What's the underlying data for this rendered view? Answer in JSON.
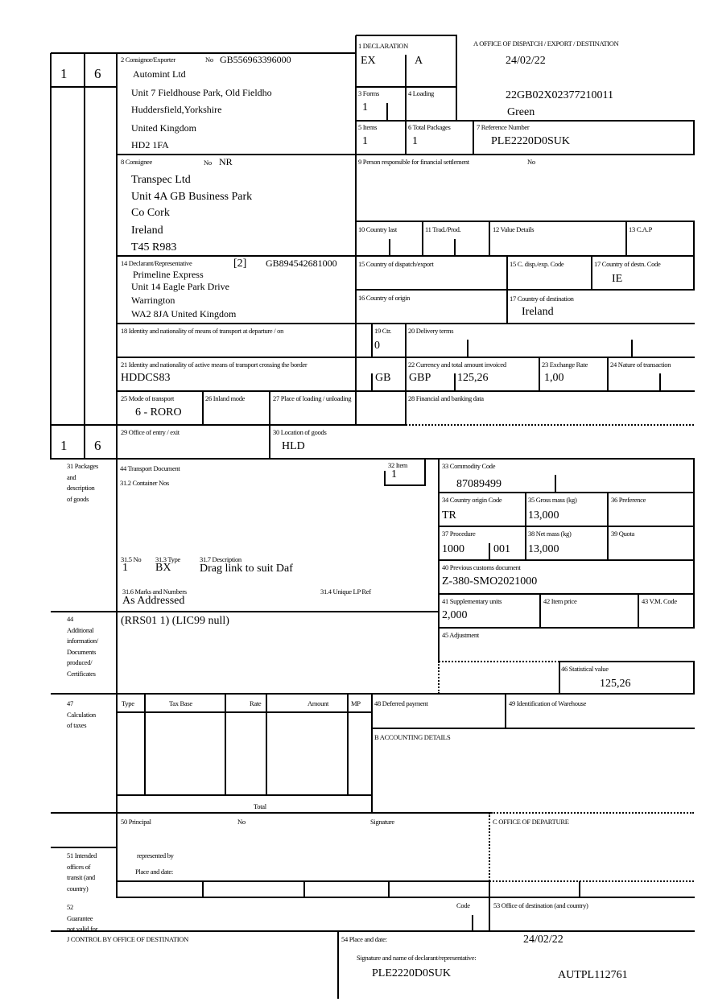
{
  "page_counter": {
    "top_forms": "1",
    "top_items": "6",
    "bottom_forms": "1",
    "bottom_items": "6"
  },
  "box1": {
    "label": "1 DECLARATION",
    "type": "EX",
    "subtype": "A"
  },
  "office": {
    "label": "A    OFFICE OF DISPATCH / EXPORT / DESTINATION",
    "date": "24/02/22",
    "mrn": "22GB02X02377210011",
    "route": "Green"
  },
  "box3": {
    "label": "3 Forms",
    "value": "1"
  },
  "box4": {
    "label": "4 Loading"
  },
  "box5": {
    "label": "5 Items",
    "value": "1"
  },
  "box6": {
    "label": "6 Total Packages",
    "value": "1"
  },
  "box7": {
    "label": "7 Reference Number",
    "value": "PLE2220D0SUK"
  },
  "consignor": {
    "label": "2 Consignor/Exporter",
    "no_label": "No",
    "eori": "GB556963396000",
    "name": "Automint Ltd",
    "line1": "Unit 7 Fieldhouse Park, Old Fieldho",
    "line2": "Huddersfield,Yorkshire",
    "country": "United Kingdom",
    "postcode": "HD2 1FA"
  },
  "consignee": {
    "label": "8 Consignee",
    "no_label": "No",
    "no": "NR",
    "name": "Transpec Ltd",
    "line1": "Unit 4A GB Business Park",
    "line2": "Co Cork",
    "country": "Ireland",
    "postcode": "T45 R983"
  },
  "box9": {
    "label": "9 Person responsible for financial settlement",
    "no_label": "No"
  },
  "box10": {
    "label": "10 Country last"
  },
  "box11": {
    "label": "11 Trad./Prod."
  },
  "box12": {
    "label": "12 Value Details"
  },
  "box13": {
    "label": "13 C.A.P"
  },
  "declarant": {
    "label": "14 Declarant/Representative",
    "type": "[2]",
    "eori": "GB894542681000",
    "name": "Primeline Express",
    "line1": "Unit 14 Eagle Park Drive",
    "line2": "Warrington",
    "line3": "WA2 8JA United Kingdom"
  },
  "box15": {
    "label": "15 Country of dispatch/export"
  },
  "box15a": {
    "label": "15 C. disp./exp. Code"
  },
  "box17a": {
    "label": "17 Country of destn. Code",
    "value": "IE"
  },
  "box16": {
    "label": "16 Country of origin"
  },
  "box17": {
    "label": "17 Country of destination",
    "value": "Ireland"
  },
  "box18": {
    "label": "18 Identity and nationality of means of transport at departure / on"
  },
  "box19": {
    "label": "19 Ctr.",
    "value": "0"
  },
  "box20": {
    "label": "20 Delivery terms"
  },
  "box21": {
    "label": "21 Identity and nationality of active means of transport crossing the border",
    "value": "HDDCS83",
    "nationality": "GB"
  },
  "box22": {
    "label": "22 Currency and total amount invoiced",
    "currency": "GBP",
    "amount": "125,26"
  },
  "box23": {
    "label": "23 Exchange Rate",
    "value": "1,00"
  },
  "box24": {
    "label": "24 Nature of transaction"
  },
  "box25": {
    "label": "25 Mode of transport",
    "value": "6 - RORO"
  },
  "box26": {
    "label": "26 Inland mode"
  },
  "box27": {
    "label": "27 Place of loading / unloading"
  },
  "box28": {
    "label": "28 Financial and banking data"
  },
  "box29": {
    "label": "29 Office of entry / exit"
  },
  "box30": {
    "label": "30 Location of goods",
    "value": "HLD"
  },
  "box31": {
    "label": "31 Packages\nand\ndescription\nof goods",
    "transport_doc_label": "44 Transport Document",
    "container_label": "31.2 Container Nos",
    "no_label": "31.5 No",
    "no": "1",
    "type_label": "31.3 Type",
    "type": "BX",
    "desc_label": "31.7 Description",
    "desc": "Drag link to suit Daf",
    "marks_label": "31.6 Marks and Numbers",
    "marks": "As Addressed",
    "lp_label": "31.4 Unique LP Ref"
  },
  "box32": {
    "label": "32 Item",
    "value": "1"
  },
  "box33": {
    "label": "33 Commodity Code",
    "value": "87089499"
  },
  "box34": {
    "label": "34 Country origin Code",
    "value": "TR"
  },
  "box35": {
    "label": "35 Gross mass (kg)",
    "value": "13,000"
  },
  "box36": {
    "label": "36 Preference"
  },
  "box37": {
    "label": "37 Procedure",
    "value": "1000",
    "additional": "001"
  },
  "box38": {
    "label": "38 Net mass (kg)",
    "value": "13,000"
  },
  "box39": {
    "label": "39 Quota"
  },
  "box40": {
    "label": "40 Previous customs document",
    "value": "Z-380-SMO2021000"
  },
  "box41": {
    "label": "41 Supplementary units",
    "value": "2,000"
  },
  "box42": {
    "label": "42 Item price"
  },
  "box43": {
    "label": "43 V.M. Code"
  },
  "box44": {
    "label": "44\nAdditional\ninformation/\nDocuments\nproduced/\nCertificates",
    "value": "(RRS01 1) (LIC99 null)"
  },
  "box45": {
    "label": "45 Adjustment"
  },
  "box46": {
    "label": "46 Statistical value",
    "value": "125,26"
  },
  "box47": {
    "label": "47\nCalculation\n    of taxes",
    "columns": [
      "Type",
      "Tax Base",
      "Rate",
      "Amount",
      "MP"
    ],
    "total_label": "Total"
  },
  "box48": {
    "label": "48 Deferred payment"
  },
  "box49": {
    "label": "49 Identification of Warehouse"
  },
  "boxB": {
    "label": "B ACCOUNTING DETAILS"
  },
  "box50": {
    "label": "50 Principal",
    "no_label": "No",
    "signature_label": "Signature",
    "represented_label": "represented by",
    "place_label": "Place and date:"
  },
  "boxC": {
    "label": "C OFFICE OF DEPARTURE"
  },
  "box51": {
    "label": "51 Intended\noffices of\ntransit (and\ncountry)"
  },
  "box52": {
    "label": "52\nGuarantee\nnot valid for",
    "code_label": "Code"
  },
  "box53": {
    "label": "53 Office of destination (and country)"
  },
  "boxJ": {
    "label": "J CONTROL BY OFFICE OF DESTINATION"
  },
  "box54": {
    "label": "54 Place and date:",
    "date": "24/02/22",
    "signature_label": "Signature and name of declarant/representative:",
    "reference": "PLE2220D0SUK",
    "signatory": "AUTPL112761"
  }
}
